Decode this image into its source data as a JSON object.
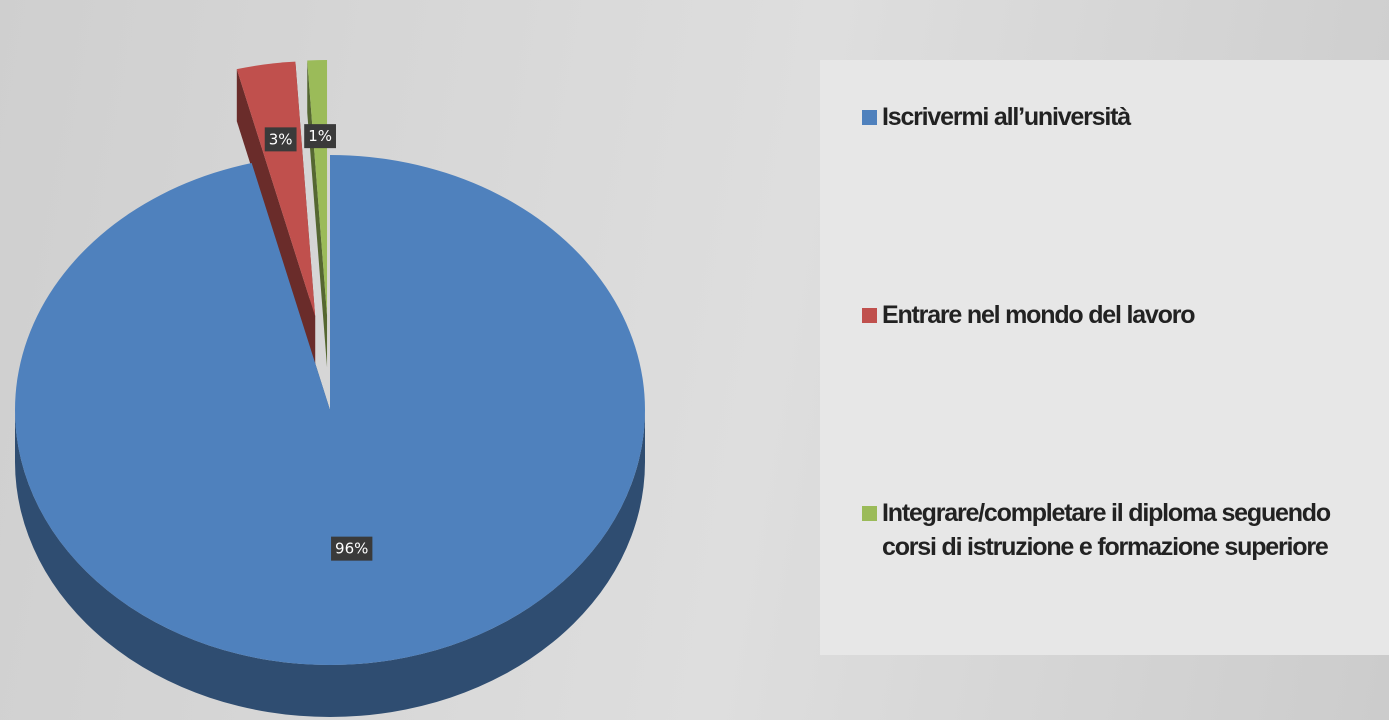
{
  "chart_data": {
    "type": "pie",
    "categories": [
      "Iscrivermi all’università",
      "Entrare nel mondo del lavoro",
      "Integrare/completare il diploma seguendo corsi di istruzione e formazione superiore"
    ],
    "values": [
      96,
      3,
      1
    ],
    "value_labels": [
      "96%",
      "3%",
      "1%"
    ],
    "colors": [
      "#4f81bd",
      "#c0504d",
      "#9bbb59"
    ],
    "legend": "right"
  }
}
